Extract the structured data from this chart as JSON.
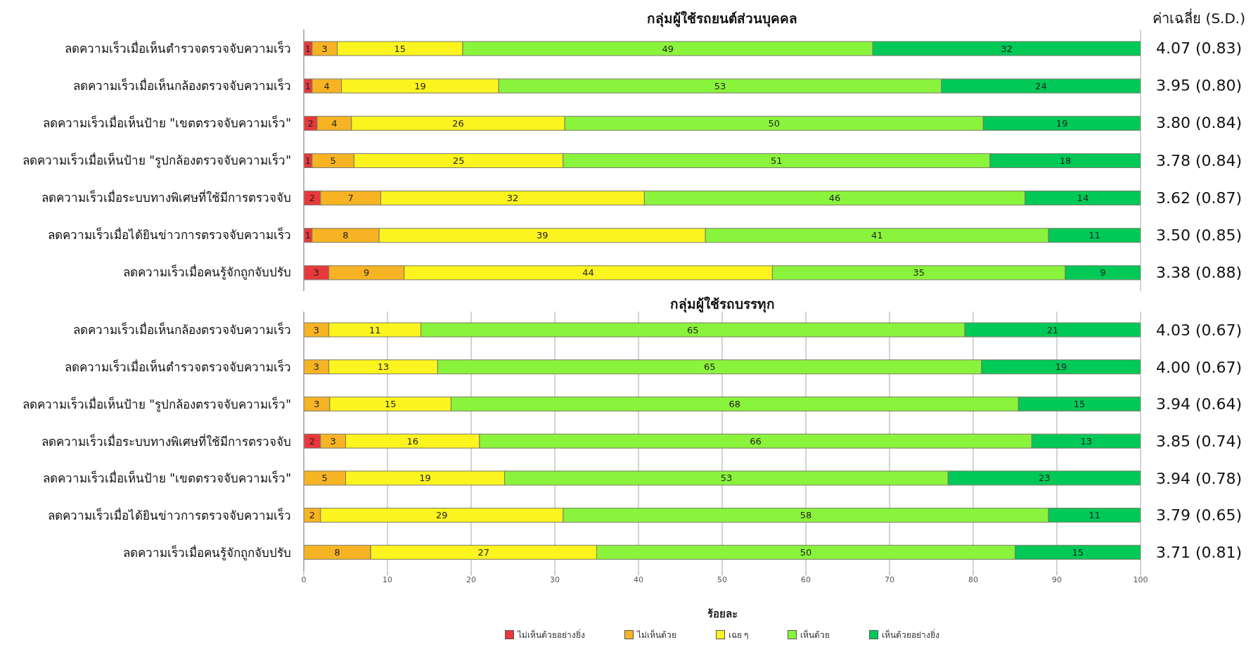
{
  "chart_data": [
    {
      "type": "bar",
      "orientation": "horizontal",
      "stacked": true,
      "title": "กลุ่มผู้ใช้รถยนต์ส่วนบุคคล",
      "y2label": "ค่าเฉลี่ย (S.D.)",
      "categories": [
        "ลดความเร็วเมื่อเห็นตำรวจตรวจจับความเร็ว",
        "ลดความเร็วเมื่อเห็นกล้องตรวจจับความเร็ว",
        "ลดความเร็วเมื่อเห็นป้าย \"เขตตรวจจับความเร็ว\"",
        "ลดความเร็วเมื่อเห็นป้าย \"รูปกล้องตรวจจับความเร็ว\"",
        "ลดความเร็วเมื่อระบบทางพิเศษที่ใช้มีการตรวจจับ",
        "ลดความเร็วเมื่อได้ยินข่าวการตรวจจับความเร็ว",
        "ลดความเร็วเมื่อคนรู้จักถูกจับปรับ"
      ],
      "y2_categories": [
        "4.07 (0.83)",
        "3.95 (0.80)",
        "3.80 (0.84)",
        "3.78 (0.84)",
        "3.62 (0.87)",
        "3.50 (0.85)",
        "3.38 (0.88)"
      ],
      "series": [
        {
          "color": "#e8383b",
          "values": [
            1,
            1,
            1.6,
            1,
            2,
            1,
            3
          ],
          "value_labels": [
            "1",
            "1",
            "2",
            "1",
            "2",
            "1",
            "3"
          ]
        },
        {
          "color": "#f6b323",
          "values": [
            3,
            3.5,
            4.1,
            5,
            7.2,
            8,
            9
          ],
          "value_labels": [
            "3",
            "4",
            "4",
            "5",
            "7",
            "8",
            "9"
          ]
        },
        {
          "color": "#fcf41e",
          "values": [
            15,
            18.8,
            25.5,
            25,
            31.5,
            39,
            44
          ],
          "value_labels": [
            "15",
            "19",
            "26",
            "25",
            "32",
            "39",
            "44"
          ]
        },
        {
          "color": "#8af43c",
          "values": [
            49,
            52.9,
            50,
            51,
            45.5,
            41,
            35
          ],
          "value_labels": [
            "49",
            "53",
            "50",
            "51",
            "46",
            "41",
            "35"
          ]
        },
        {
          "color": "#00c957",
          "values": [
            32,
            23.8,
            18.8,
            18,
            13.8,
            11,
            9
          ],
          "value_labels": [
            "32",
            "24",
            "19",
            "18",
            "14",
            "11",
            "9"
          ]
        }
      ],
      "xlim": [
        0,
        100
      ],
      "xticks": [
        0,
        10,
        20,
        30,
        40,
        50,
        60,
        70,
        80,
        90,
        100
      ],
      "grid": "x",
      "tick_labels": "y"
    },
    {
      "type": "bar",
      "orientation": "horizontal",
      "stacked": true,
      "title": "กลุ่มผู้ใช้รถบรรทุก",
      "xlabel": "ร้อยละ",
      "categories": [
        "ลดความเร็วเมื่อเห็นกล้องตรวจจับความเร็ว",
        "ลดความเร็วเมื่อเห็นตำรวจตรวจจับความเร็ว",
        "ลดความเร็วเมื่อเห็นป้าย \"รูปกล้องตรวจจับความเร็ว\"",
        "ลดความเร็วเมื่อระบบทางพิเศษที่ใช้มีการตรวจจับ",
        "ลดความเร็วเมื่อเห็นป้าย \"เขตตรวจจับความเร็ว\"",
        "ลดความเร็วเมื่อได้ยินข่าวการตรวจจับความเร็ว",
        "ลดความเร็วเมื่อคนรู้จักถูกจับปรับ"
      ],
      "y2_categories": [
        "4.03 (0.67)",
        "4.00 (0.67)",
        "3.94 (0.64)",
        "3.85 (0.74)",
        "3.94 (0.78)",
        "3.79 (0.65)",
        "3.71 (0.81)"
      ],
      "series": [
        {
          "name": "ไม่เห็นด้วยอย่างยิ่ง",
          "color": "#e8383b",
          "values": [
            null,
            null,
            null,
            2,
            null,
            null,
            null
          ],
          "value_labels": [
            null,
            null,
            null,
            "2",
            null,
            null,
            null
          ]
        },
        {
          "name": "ไม่เห็นด้วย",
          "color": "#f6b323",
          "values": [
            3,
            3,
            3.1,
            3,
            5,
            2,
            8
          ],
          "value_labels": [
            "3",
            "3",
            "3",
            "3",
            "5",
            "2",
            "8"
          ]
        },
        {
          "name": "เฉย ๆ",
          "color": "#fcf41e",
          "values": [
            11,
            13,
            14.5,
            16,
            19,
            29,
            27
          ],
          "value_labels": [
            "11",
            "13",
            "15",
            "16",
            "19",
            "29",
            "27"
          ]
        },
        {
          "name": "เห็นด้วย",
          "color": "#8af43c",
          "values": [
            65,
            65,
            67.8,
            66,
            53,
            58,
            50
          ],
          "value_labels": [
            "65",
            "65",
            "68",
            "66",
            "53",
            "58",
            "50"
          ]
        },
        {
          "name": "เห็นด้วยอย่างยิ่ง",
          "color": "#00c957",
          "values": [
            21,
            19,
            14.6,
            13,
            23,
            11,
            15
          ],
          "value_labels": [
            "21",
            "19",
            "15",
            "13",
            "23",
            "11",
            "15"
          ]
        }
      ],
      "xlim": [
        0,
        100
      ],
      "xticks": [
        0,
        10,
        20,
        30,
        40,
        50,
        60,
        70,
        80,
        90,
        100
      ],
      "grid": "x",
      "legend": "bottom"
    }
  ]
}
